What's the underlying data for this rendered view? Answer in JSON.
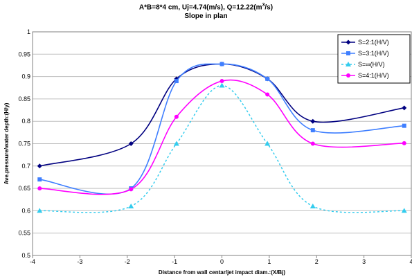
{
  "chart_data": {
    "type": "line",
    "title_line1": "A*B=8*4 cm, Uj=4.74(m/s), Q=12.22(m",
    "title_sup": "3",
    "title_line1_end": "/s)",
    "title_line2": "Slope in plan",
    "xlabel": "Distance from wall centar/jet impact diam.:(X/Bj)",
    "ylabel": "Ave.pressure/water depth:(H/y)",
    "xlim": [
      -4,
      4
    ],
    "ylim": [
      0.5,
      1
    ],
    "xticks": [
      "-4",
      "-3",
      "-2",
      "-1",
      "0",
      "1",
      "2",
      "3",
      "4"
    ],
    "yticks": [
      "0.5",
      "0.55",
      "0.6",
      "0.65",
      "0.7",
      "0.75",
      "0.8",
      "0.85",
      "0.9",
      "0.95",
      "1"
    ],
    "grid": "horizontal",
    "legend_position": "top-right",
    "series": [
      {
        "name": "S=2:1(H/V)",
        "color": "#000080",
        "marker": "diamond",
        "dash": "solid",
        "x": [
          -3.85,
          -1.92,
          -0.96,
          0,
          0.96,
          1.92,
          3.85
        ],
        "y": [
          0.7,
          0.75,
          0.895,
          0.928,
          0.895,
          0.8,
          0.83
        ]
      },
      {
        "name": "S=3:1(H/V)",
        "color": "#3f7fff",
        "marker": "square",
        "dash": "solid",
        "x": [
          -3.85,
          -1.92,
          -0.96,
          0,
          0.96,
          1.92,
          3.85
        ],
        "y": [
          0.67,
          0.65,
          0.89,
          0.928,
          0.895,
          0.78,
          0.79
        ]
      },
      {
        "name": "S=∞(H/V)",
        "color": "#33ccee",
        "marker": "triangle",
        "dash": "dashed",
        "x": [
          -3.85,
          -1.92,
          -0.96,
          0,
          0.96,
          1.92,
          3.85
        ],
        "y": [
          0.6,
          0.61,
          0.75,
          0.88,
          0.75,
          0.61,
          0.6
        ]
      },
      {
        "name": "S=4:1(H/V)",
        "color": "#ff00ff",
        "marker": "circle",
        "dash": "solid",
        "x": [
          -3.85,
          -1.92,
          -0.96,
          0,
          0.96,
          1.92,
          3.85
        ],
        "y": [
          0.65,
          0.648,
          0.81,
          0.89,
          0.86,
          0.75,
          0.751
        ]
      }
    ]
  }
}
